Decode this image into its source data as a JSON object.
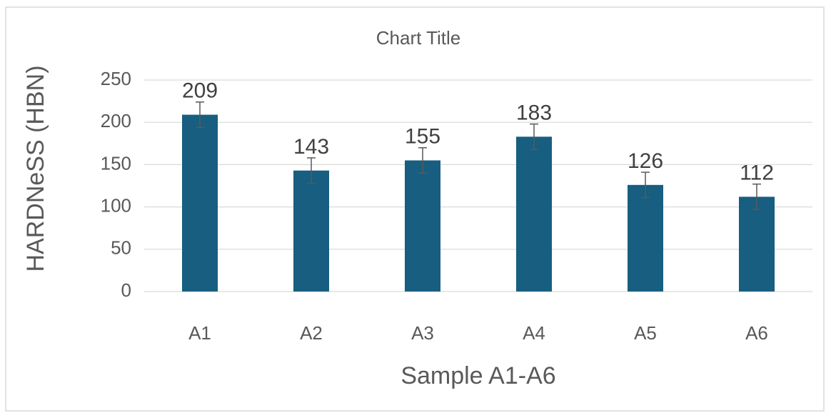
{
  "chart_data": {
    "type": "bar",
    "title": "Chart Title",
    "x_label": "Sample A1-A6",
    "y_label": "HARDNeSS (HBN)",
    "categories": [
      "A1",
      "A2",
      "A3",
      "A4",
      "A5",
      "A6"
    ],
    "values": [
      209,
      143,
      155,
      183,
      126,
      112
    ],
    "errors": [
      15,
      15,
      15,
      15,
      15,
      15
    ],
    "color": "#175e80",
    "ylim": [
      0,
      250
    ],
    "yticks": [
      0,
      50,
      100,
      150,
      200,
      250
    ],
    "grid": true
  }
}
